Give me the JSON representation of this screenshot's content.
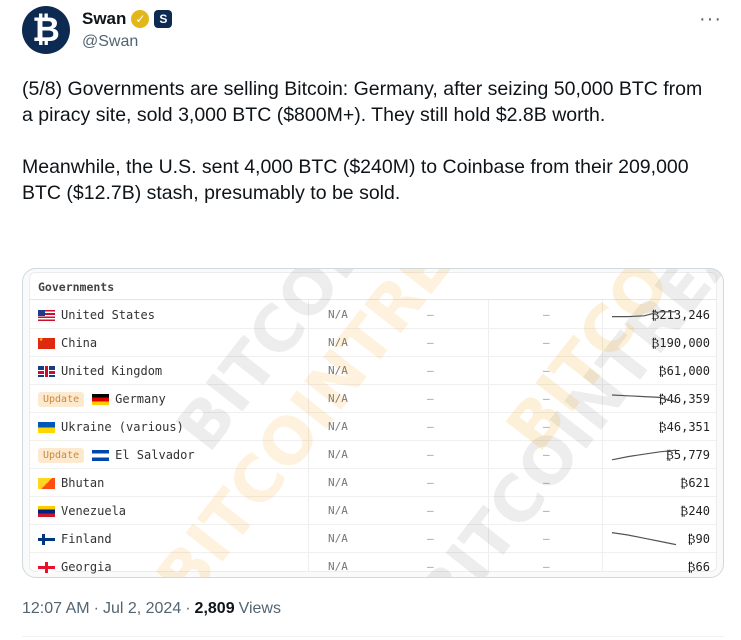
{
  "author": {
    "display_name": "Swan",
    "handle": "@Swan",
    "avatar_glyph": "₿",
    "verified_glyph": "✓",
    "org_glyph": "S"
  },
  "more_glyph": "···",
  "tweet": {
    "paragraph1": "(5/8) Governments are selling Bitcoin: Germany, after seizing 50,000 BTC from a piracy site, sold 3,000 BTC ($800M+). They still hold $2.8B worth.",
    "paragraph2": "Meanwhile, the U.S. sent 4,000 BTC ($240M) to Coinbase from their 209,000 BTC ($12.7B) stash, presumably to be sold."
  },
  "table": {
    "title": "Governments",
    "update_label": "Update",
    "rows": [
      {
        "name": "United States",
        "flag": "us",
        "na": "N/A",
        "dash1": "–",
        "dash2": "–",
        "value": "₿213,246",
        "update": false,
        "trend": [
          0.4,
          0.4,
          0.45,
          0.7,
          0.7
        ]
      },
      {
        "name": "China",
        "flag": "cn",
        "na": "N/A",
        "dash1": "–",
        "dash2": "–",
        "value": "₿190,000",
        "update": false
      },
      {
        "name": "United Kingdom",
        "flag": "uk",
        "na": "N/A",
        "dash1": "–",
        "dash2": "–",
        "value": "₿61,000",
        "update": false
      },
      {
        "name": "Germany",
        "flag": "de",
        "na": "N/A",
        "dash1": "–",
        "dash2": "–",
        "value": "₿46,359",
        "update": true,
        "trend": [
          0.75,
          0.7,
          0.65,
          0.6,
          0.3
        ]
      },
      {
        "name": "Ukraine (various)",
        "flag": "ua",
        "na": "N/A",
        "dash1": "–",
        "dash2": "–",
        "value": "₿46,351",
        "update": false
      },
      {
        "name": "El Salvador",
        "flag": "sv",
        "na": "N/A",
        "dash1": "–",
        "dash2": "–",
        "value": "₿5,779",
        "update": true,
        "trend": [
          0.2,
          0.4,
          0.55,
          0.7,
          0.8
        ]
      },
      {
        "name": "Bhutan",
        "flag": "bt",
        "na": "N/A",
        "dash1": "–",
        "dash2": "–",
        "value": "₿621",
        "update": false
      },
      {
        "name": "Venezuela",
        "flag": "ve",
        "na": "N/A",
        "dash1": "–",
        "dash2": "–",
        "value": "₿240",
        "update": false
      },
      {
        "name": "Finland",
        "flag": "fi",
        "na": "N/A",
        "dash1": "–",
        "dash2": "–",
        "value": "₿90",
        "update": false,
        "trend": [
          0.9,
          0.75,
          0.55,
          0.35,
          0.15
        ]
      },
      {
        "name": "Georgia",
        "flag": "ge",
        "na": "N/A",
        "dash1": "–",
        "dash2": "–",
        "value": "₿66",
        "update": false
      }
    ]
  },
  "watermarks": [
    "BITCOINTREASURIES.NET",
    "BITCOINTREASURIES.NET",
    "BITCO",
    "BITCOINTREASURIES.NET"
  ],
  "footer": {
    "time": "12:07 AM",
    "sep1": "·",
    "date": "Jul 2, 2024",
    "sep2": "·",
    "views_count": "2,809",
    "views_label": "Views"
  },
  "colors": {
    "text": "#0f1419",
    "secondary": "#536471",
    "border": "#cfd9de",
    "verified": "#e2b719",
    "avatar_bg": "#0c2a52",
    "update_tag_bg": "#fde9cf"
  }
}
